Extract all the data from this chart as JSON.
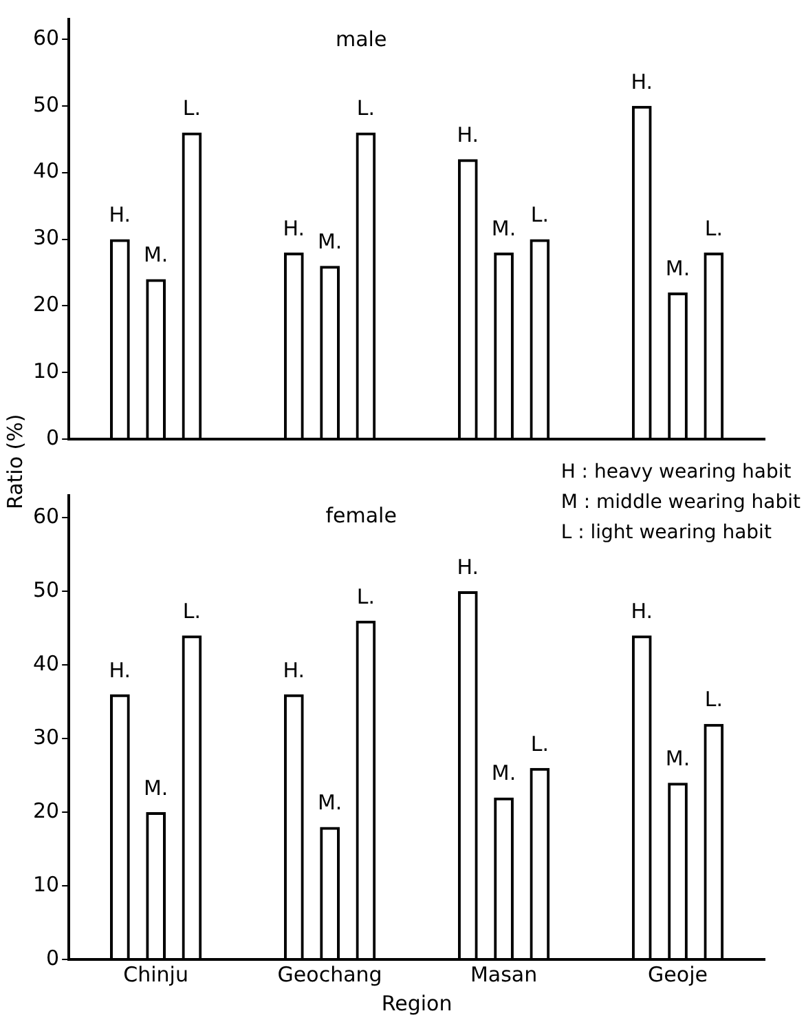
{
  "chart_data": [
    {
      "type": "bar",
      "title": "male",
      "ylabel": "Ratio (%)",
      "categories": [
        null,
        null,
        null,
        null
      ],
      "tick_labels": "y",
      "ylim": [
        0,
        63
      ],
      "yticks": [
        0,
        10,
        20,
        30,
        40,
        50,
        60
      ],
      "series": [
        {
          "name": "H.",
          "color": "#000000",
          "values": [
            30,
            28,
            42,
            50
          ]
        },
        {
          "name": "M.",
          "color": "#000000",
          "values": [
            24,
            26,
            28,
            22
          ]
        },
        {
          "name": "L.",
          "color": "#000000",
          "values": [
            46,
            46,
            30,
            28
          ]
        }
      ]
    },
    {
      "type": "bar",
      "title": "female",
      "xlabel": "Region",
      "categories": [
        "Chinju",
        "Geochang",
        "Masan",
        "Geoje"
      ],
      "ylim": [
        0,
        63
      ],
      "yticks": [
        0,
        10,
        20,
        30,
        40,
        50,
        60
      ],
      "annotations": [
        "H : heavy wearing habit",
        "M : middle wearing habit",
        "L : light wearing habit"
      ],
      "series": [
        {
          "name": "H.",
          "color": "#000000",
          "values": [
            36,
            36,
            50,
            44
          ]
        },
        {
          "name": "M.",
          "color": "#000000",
          "values": [
            20,
            18,
            22,
            24
          ]
        },
        {
          "name": "L.",
          "color": "#000000",
          "values": [
            44,
            46,
            26,
            32
          ]
        }
      ]
    }
  ]
}
